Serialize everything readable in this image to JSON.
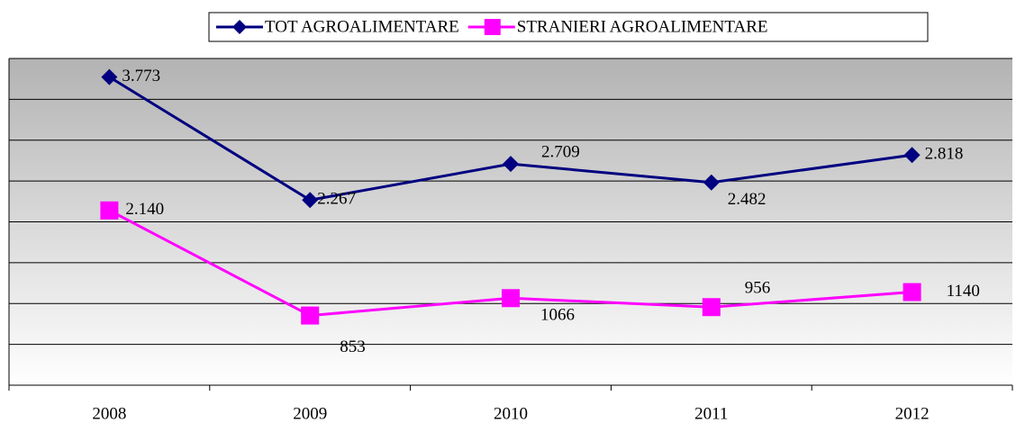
{
  "chart_data": {
    "type": "line",
    "categories": [
      "2008",
      "2009",
      "2010",
      "2011",
      "2012"
    ],
    "series": [
      {
        "name": "TOT AGROALIMENTARE",
        "color": "#000080",
        "marker": "diamond",
        "values": [
          3773,
          2267,
          2709,
          2482,
          2818
        ],
        "value_labels": [
          "3.773",
          "2.267",
          "2.709",
          "2.482",
          "2.818"
        ]
      },
      {
        "name": "STRANIERI AGROALIMENTARE",
        "color": "#ff00ff",
        "marker": "square",
        "values": [
          2140,
          853,
          1066,
          956,
          1140
        ],
        "value_labels": [
          "2.140",
          "853",
          "1066",
          "956",
          "1140"
        ]
      }
    ],
    "ylim": [
      0,
      4000
    ],
    "yticks": [
      0,
      500,
      1000,
      1500,
      2000,
      2500,
      3000,
      3500,
      4000
    ],
    "grid": true,
    "legend": "top"
  }
}
